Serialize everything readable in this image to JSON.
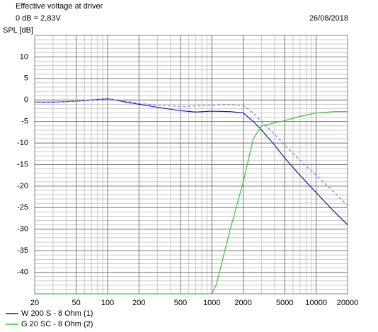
{
  "chart_data": {
    "type": "line",
    "title": "Effective voltage at driver",
    "subtitle": "0 dB = 2,83V",
    "date": "26/08/2018",
    "ylabel": "SPL [dB]",
    "xscale": "log",
    "grid": true,
    "xlim": [
      20,
      20000
    ],
    "ylim": [
      -45,
      15
    ],
    "xticks": [
      20,
      50,
      100,
      200,
      500,
      1000,
      2000,
      5000,
      10000,
      20000
    ],
    "yticks": [
      -40,
      -35,
      -30,
      -25,
      -20,
      -15,
      -10,
      -5,
      0,
      5,
      10
    ],
    "series": [
      {
        "name": "W 200 S - 8 Ohm (1)",
        "color": "#1c1ca8",
        "x": [
          20,
          30,
          50,
          70,
          100,
          150,
          200,
          300,
          500,
          700,
          1000,
          1500,
          2000,
          2500,
          3000,
          4000,
          5000,
          7000,
          10000,
          15000,
          20000
        ],
        "values": [
          -0.5,
          -0.5,
          -0.3,
          0,
          0.3,
          -0.5,
          -1,
          -1.7,
          -2.5,
          -2.8,
          -2.6,
          -2.7,
          -3,
          -5,
          -7,
          -10.5,
          -13.5,
          -17.5,
          -21.5,
          -26,
          -29
        ]
      },
      {
        "name": "G 20 SC - 8 Ohm (2)",
        "color": "#33c833",
        "x": [
          20,
          100,
          500,
          1000,
          1100,
          1500,
          2000,
          2500,
          3000,
          4000,
          5000,
          7000,
          10000,
          15000,
          20000
        ],
        "values": [
          -45,
          -45,
          -45,
          -45,
          -43,
          -30,
          -19,
          -9,
          -6,
          -5.3,
          -4.8,
          -3.8,
          -3,
          -2.7,
          -2.7
        ]
      },
      {
        "color": "#8080f0",
        "dashed": true,
        "x": [
          20,
          30,
          50,
          70,
          100,
          150,
          200,
          300,
          500,
          700,
          1000,
          1500,
          2000,
          2500,
          3000,
          4000,
          5000,
          7000,
          10000,
          15000,
          20000
        ],
        "values": [
          -0.5,
          -0.5,
          -0.3,
          0,
          0.2,
          -0.3,
          -0.8,
          -1.2,
          -1.5,
          -1.4,
          -1.2,
          -1.1,
          -1.3,
          -3,
          -5,
          -8,
          -10.5,
          -14,
          -17.5,
          -21.5,
          -24.5
        ]
      }
    ]
  }
}
